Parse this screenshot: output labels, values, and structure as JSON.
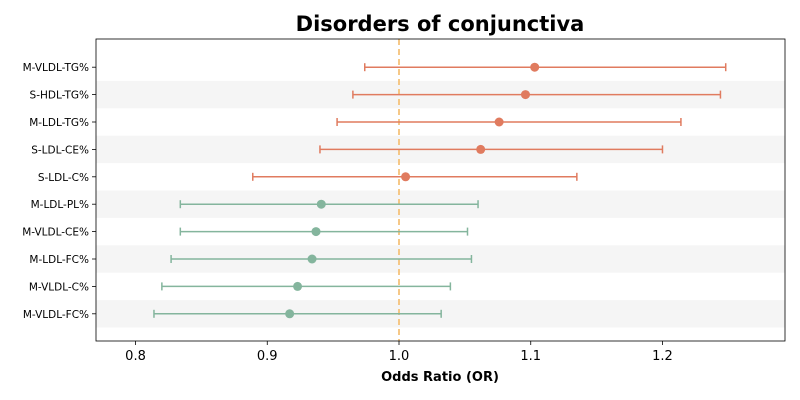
{
  "chart_data": {
    "type": "forest",
    "title": "Disorders of conjunctiva",
    "xlabel": "Odds Ratio (OR)",
    "xlim": [
      0.77,
      1.293
    ],
    "xticks": [
      0.8,
      0.9,
      1.0,
      1.1,
      1.2
    ],
    "xtick_labels": [
      "0.8",
      "0.9",
      "1.0",
      "1.1",
      "1.2"
    ],
    "reference_line": 1.0,
    "colors": {
      "positive": "#e07b5f",
      "negative": "#84b59d",
      "reference": "#f5c27a",
      "band": "#f5f5f5"
    },
    "rows": [
      {
        "label": "M-VLDL-TG%",
        "or": 1.103,
        "lower": 0.974,
        "upper": 1.248
      },
      {
        "label": "S-HDL-TG%",
        "or": 1.096,
        "lower": 0.965,
        "upper": 1.244
      },
      {
        "label": "M-LDL-TG%",
        "or": 1.076,
        "lower": 0.953,
        "upper": 1.214
      },
      {
        "label": "S-LDL-CE%",
        "or": 1.062,
        "lower": 0.94,
        "upper": 1.2
      },
      {
        "label": "S-LDL-C%",
        "or": 1.005,
        "lower": 0.889,
        "upper": 1.135
      },
      {
        "label": "M-LDL-PL%",
        "or": 0.941,
        "lower": 0.834,
        "upper": 1.06
      },
      {
        "label": "M-VLDL-CE%",
        "or": 0.937,
        "lower": 0.834,
        "upper": 1.052
      },
      {
        "label": "M-LDL-FC%",
        "or": 0.934,
        "lower": 0.827,
        "upper": 1.055
      },
      {
        "label": "M-VLDL-C%",
        "or": 0.923,
        "lower": 0.82,
        "upper": 1.039
      },
      {
        "label": "M-VLDL-FC%",
        "or": 0.917,
        "lower": 0.814,
        "upper": 1.032
      }
    ]
  }
}
